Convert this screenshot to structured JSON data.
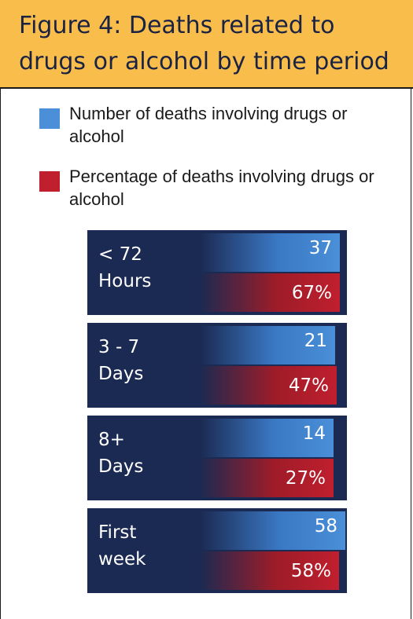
{
  "title": "Figure 4: Deaths related to drugs or alcohol by time period",
  "legend": [
    {
      "label": "Number of deaths involving drugs or alcohol",
      "color": "#4a8fd8"
    },
    {
      "label": "Percentage of deaths involving drugs or alcohol",
      "color": "#c01f2e"
    }
  ],
  "chart_data": {
    "type": "bar",
    "title": "Figure 4: Deaths related to drugs or alcohol by time period",
    "categories": [
      "< 72\nHours",
      "3 - 7\nDays",
      "8+\nDays",
      "First\nweek"
    ],
    "series": [
      {
        "name": "Number of deaths involving drugs or alcohol",
        "values": [
          37,
          21,
          14,
          58
        ],
        "labels": [
          "37",
          "21",
          "14",
          "58"
        ],
        "color": "#4a8fd8"
      },
      {
        "name": "Percentage of deaths involving drugs or alcohol",
        "values": [
          67,
          47,
          27,
          58
        ],
        "labels": [
          "67%",
          "47%",
          "27%",
          "58%"
        ],
        "color": "#c01f2e"
      }
    ],
    "legend": "top-left",
    "grid": false
  }
}
